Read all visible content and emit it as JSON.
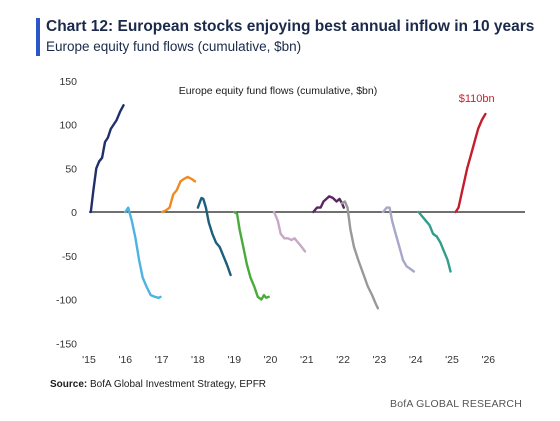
{
  "header": {
    "title": "Chart 12: European stocks enjoying best annual inflow in 10 years",
    "subtitle": "Europe equity fund flows (cumulative, $bn)"
  },
  "footer": {
    "source_label": "Source:",
    "source_text": "BofA Global Investment Strategy, EPFR",
    "brand": "BofA GLOBAL RESEARCH"
  },
  "chart_data": {
    "type": "line",
    "title": "Europe equity fund flows (cumulative, $bn)",
    "xlabel": "",
    "ylabel": "",
    "xlim": [
      2015,
      2026.3
    ],
    "ylim": [
      -150,
      150
    ],
    "grid": false,
    "x_ticks": [
      "'15",
      "'16",
      "'17",
      "'18",
      "'19",
      "'20",
      "'21",
      "'22",
      "'23",
      "'24",
      "'25",
      "'26"
    ],
    "y_ticks": [
      "150",
      "100",
      "50",
      "0",
      "-50",
      "-100",
      "-150"
    ],
    "annotation": {
      "text": "$110bn",
      "x": 2025.9,
      "y": 110
    },
    "series": [
      {
        "color": "#1f2f6b",
        "points": [
          [
            2015.05,
            0
          ],
          [
            2015.12,
            25
          ],
          [
            2015.2,
            50
          ],
          [
            2015.28,
            58
          ],
          [
            2015.36,
            62
          ],
          [
            2015.44,
            80
          ],
          [
            2015.52,
            85
          ],
          [
            2015.6,
            95
          ],
          [
            2015.68,
            100
          ],
          [
            2015.76,
            105
          ],
          [
            2015.86,
            115
          ],
          [
            2015.95,
            122
          ]
        ]
      },
      {
        "color": "#4db3e0",
        "points": [
          [
            2016.0,
            0
          ],
          [
            2016.08,
            5
          ],
          [
            2016.18,
            -10
          ],
          [
            2016.28,
            -30
          ],
          [
            2016.38,
            -55
          ],
          [
            2016.48,
            -75
          ],
          [
            2016.58,
            -85
          ],
          [
            2016.7,
            -95
          ],
          [
            2016.82,
            -97
          ],
          [
            2016.92,
            -98
          ],
          [
            2016.97,
            -97
          ]
        ]
      },
      {
        "color": "#f08a24",
        "points": [
          [
            2017.02,
            0
          ],
          [
            2017.12,
            2
          ],
          [
            2017.22,
            5
          ],
          [
            2017.32,
            20
          ],
          [
            2017.42,
            25
          ],
          [
            2017.52,
            35
          ],
          [
            2017.62,
            38
          ],
          [
            2017.72,
            40
          ],
          [
            2017.82,
            38
          ],
          [
            2017.92,
            35
          ]
        ]
      },
      {
        "color": "#1d5e7a",
        "points": [
          [
            2018.0,
            5
          ],
          [
            2018.06,
            12
          ],
          [
            2018.1,
            16
          ],
          [
            2018.15,
            15
          ],
          [
            2018.22,
            5
          ],
          [
            2018.3,
            -12
          ],
          [
            2018.4,
            -25
          ],
          [
            2018.5,
            -35
          ],
          [
            2018.6,
            -40
          ],
          [
            2018.7,
            -50
          ],
          [
            2018.8,
            -60
          ],
          [
            2018.9,
            -72
          ]
        ]
      },
      {
        "color": "#4aaa3c",
        "points": [
          [
            2019.0,
            0
          ],
          [
            2019.08,
            -2
          ],
          [
            2019.15,
            -20
          ],
          [
            2019.25,
            -40
          ],
          [
            2019.35,
            -60
          ],
          [
            2019.45,
            -75
          ],
          [
            2019.55,
            -85
          ],
          [
            2019.65,
            -97
          ],
          [
            2019.75,
            -100
          ],
          [
            2019.82,
            -95
          ],
          [
            2019.88,
            -98
          ],
          [
            2019.95,
            -97
          ]
        ]
      },
      {
        "color": "#c7a8c7",
        "points": [
          [
            2020.1,
            0
          ],
          [
            2020.2,
            -10
          ],
          [
            2020.28,
            -25
          ],
          [
            2020.38,
            -30
          ],
          [
            2020.48,
            -30
          ],
          [
            2020.58,
            -32
          ],
          [
            2020.66,
            -30
          ],
          [
            2020.76,
            -35
          ],
          [
            2020.86,
            -40
          ],
          [
            2020.95,
            -45
          ]
        ]
      },
      {
        "color": "#5b2563",
        "points": [
          [
            2021.18,
            0
          ],
          [
            2021.28,
            5
          ],
          [
            2021.38,
            5
          ],
          [
            2021.46,
            12
          ],
          [
            2021.54,
            15
          ],
          [
            2021.62,
            18
          ],
          [
            2021.72,
            16
          ],
          [
            2021.82,
            12
          ],
          [
            2021.9,
            15
          ],
          [
            2021.97,
            10
          ],
          [
            2022.02,
            5
          ]
        ]
      },
      {
        "color": "#999999",
        "points": [
          [
            2021.97,
            10
          ],
          [
            2022.05,
            12
          ],
          [
            2022.12,
            5
          ],
          [
            2022.2,
            -20
          ],
          [
            2022.3,
            -40
          ],
          [
            2022.42,
            -55
          ],
          [
            2022.55,
            -70
          ],
          [
            2022.68,
            -85
          ],
          [
            2022.8,
            -95
          ],
          [
            2022.9,
            -105
          ],
          [
            2022.96,
            -110
          ]
        ]
      },
      {
        "color": "#a7a7c9",
        "points": [
          [
            2023.1,
            0
          ],
          [
            2023.2,
            5
          ],
          [
            2023.28,
            5
          ],
          [
            2023.35,
            -10
          ],
          [
            2023.45,
            -25
          ],
          [
            2023.55,
            -40
          ],
          [
            2023.65,
            -55
          ],
          [
            2023.75,
            -62
          ],
          [
            2023.85,
            -65
          ],
          [
            2023.95,
            -68
          ]
        ]
      },
      {
        "color": "#2f9e8a",
        "points": [
          [
            2024.08,
            0
          ],
          [
            2024.18,
            -5
          ],
          [
            2024.28,
            -10
          ],
          [
            2024.38,
            -15
          ],
          [
            2024.48,
            -25
          ],
          [
            2024.58,
            -28
          ],
          [
            2024.68,
            -35
          ],
          [
            2024.78,
            -45
          ],
          [
            2024.88,
            -55
          ],
          [
            2024.96,
            -68
          ]
        ]
      },
      {
        "color": "#c41e2e",
        "points": [
          [
            2025.1,
            0
          ],
          [
            2025.18,
            5
          ],
          [
            2025.26,
            20
          ],
          [
            2025.34,
            35
          ],
          [
            2025.42,
            50
          ],
          [
            2025.52,
            65
          ],
          [
            2025.62,
            80
          ],
          [
            2025.72,
            95
          ],
          [
            2025.82,
            105
          ],
          [
            2025.92,
            112
          ]
        ]
      }
    ]
  }
}
